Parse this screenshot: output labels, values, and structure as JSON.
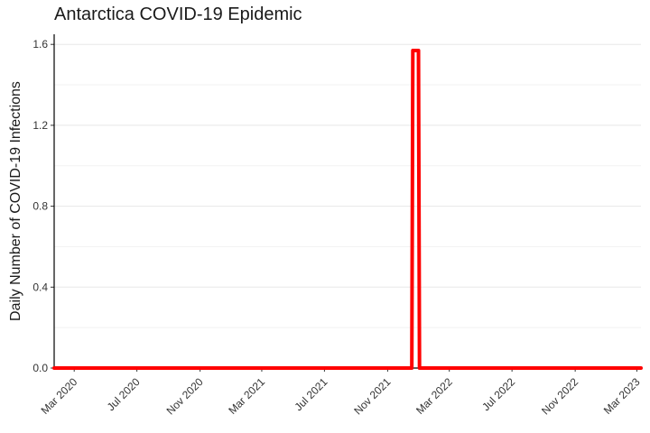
{
  "chart_data": {
    "type": "line",
    "title": "Antarctica COVID-19 Epidemic",
    "xlabel": "",
    "ylabel": "Daily Number of COVID-19 Infections",
    "x_type": "date",
    "xlim": [
      "2020-01-22",
      "2023-03-09"
    ],
    "ylim": [
      0,
      1.65
    ],
    "y_ticks": [
      0.0,
      0.4,
      0.8,
      1.2,
      1.6
    ],
    "y_tick_labels": [
      "0.0",
      "0.4",
      "0.8",
      "1.2",
      "1.6"
    ],
    "x_ticks": [
      "2020-03-01",
      "2020-07-01",
      "2020-11-01",
      "2021-03-01",
      "2021-07-01",
      "2021-11-01",
      "2022-03-01",
      "2022-07-01",
      "2022-11-01",
      "2023-03-01"
    ],
    "x_tick_labels": [
      "Mar 2020",
      "Jul 2020",
      "Nov 2020",
      "Mar 2021",
      "Jul 2021",
      "Nov 2021",
      "Mar 2022",
      "Jul 2022",
      "Nov 2022",
      "Mar 2023"
    ],
    "grid": true,
    "series": [
      {
        "color": "#ff0000",
        "points": [
          {
            "x": "2020-01-22",
            "y": 0
          },
          {
            "x": "2021-12-18",
            "y": 0
          },
          {
            "x": "2021-12-20",
            "y": 1.57
          },
          {
            "x": "2021-12-31",
            "y": 1.57
          },
          {
            "x": "2022-01-02",
            "y": 0
          },
          {
            "x": "2023-03-09",
            "y": 0
          }
        ]
      }
    ]
  }
}
